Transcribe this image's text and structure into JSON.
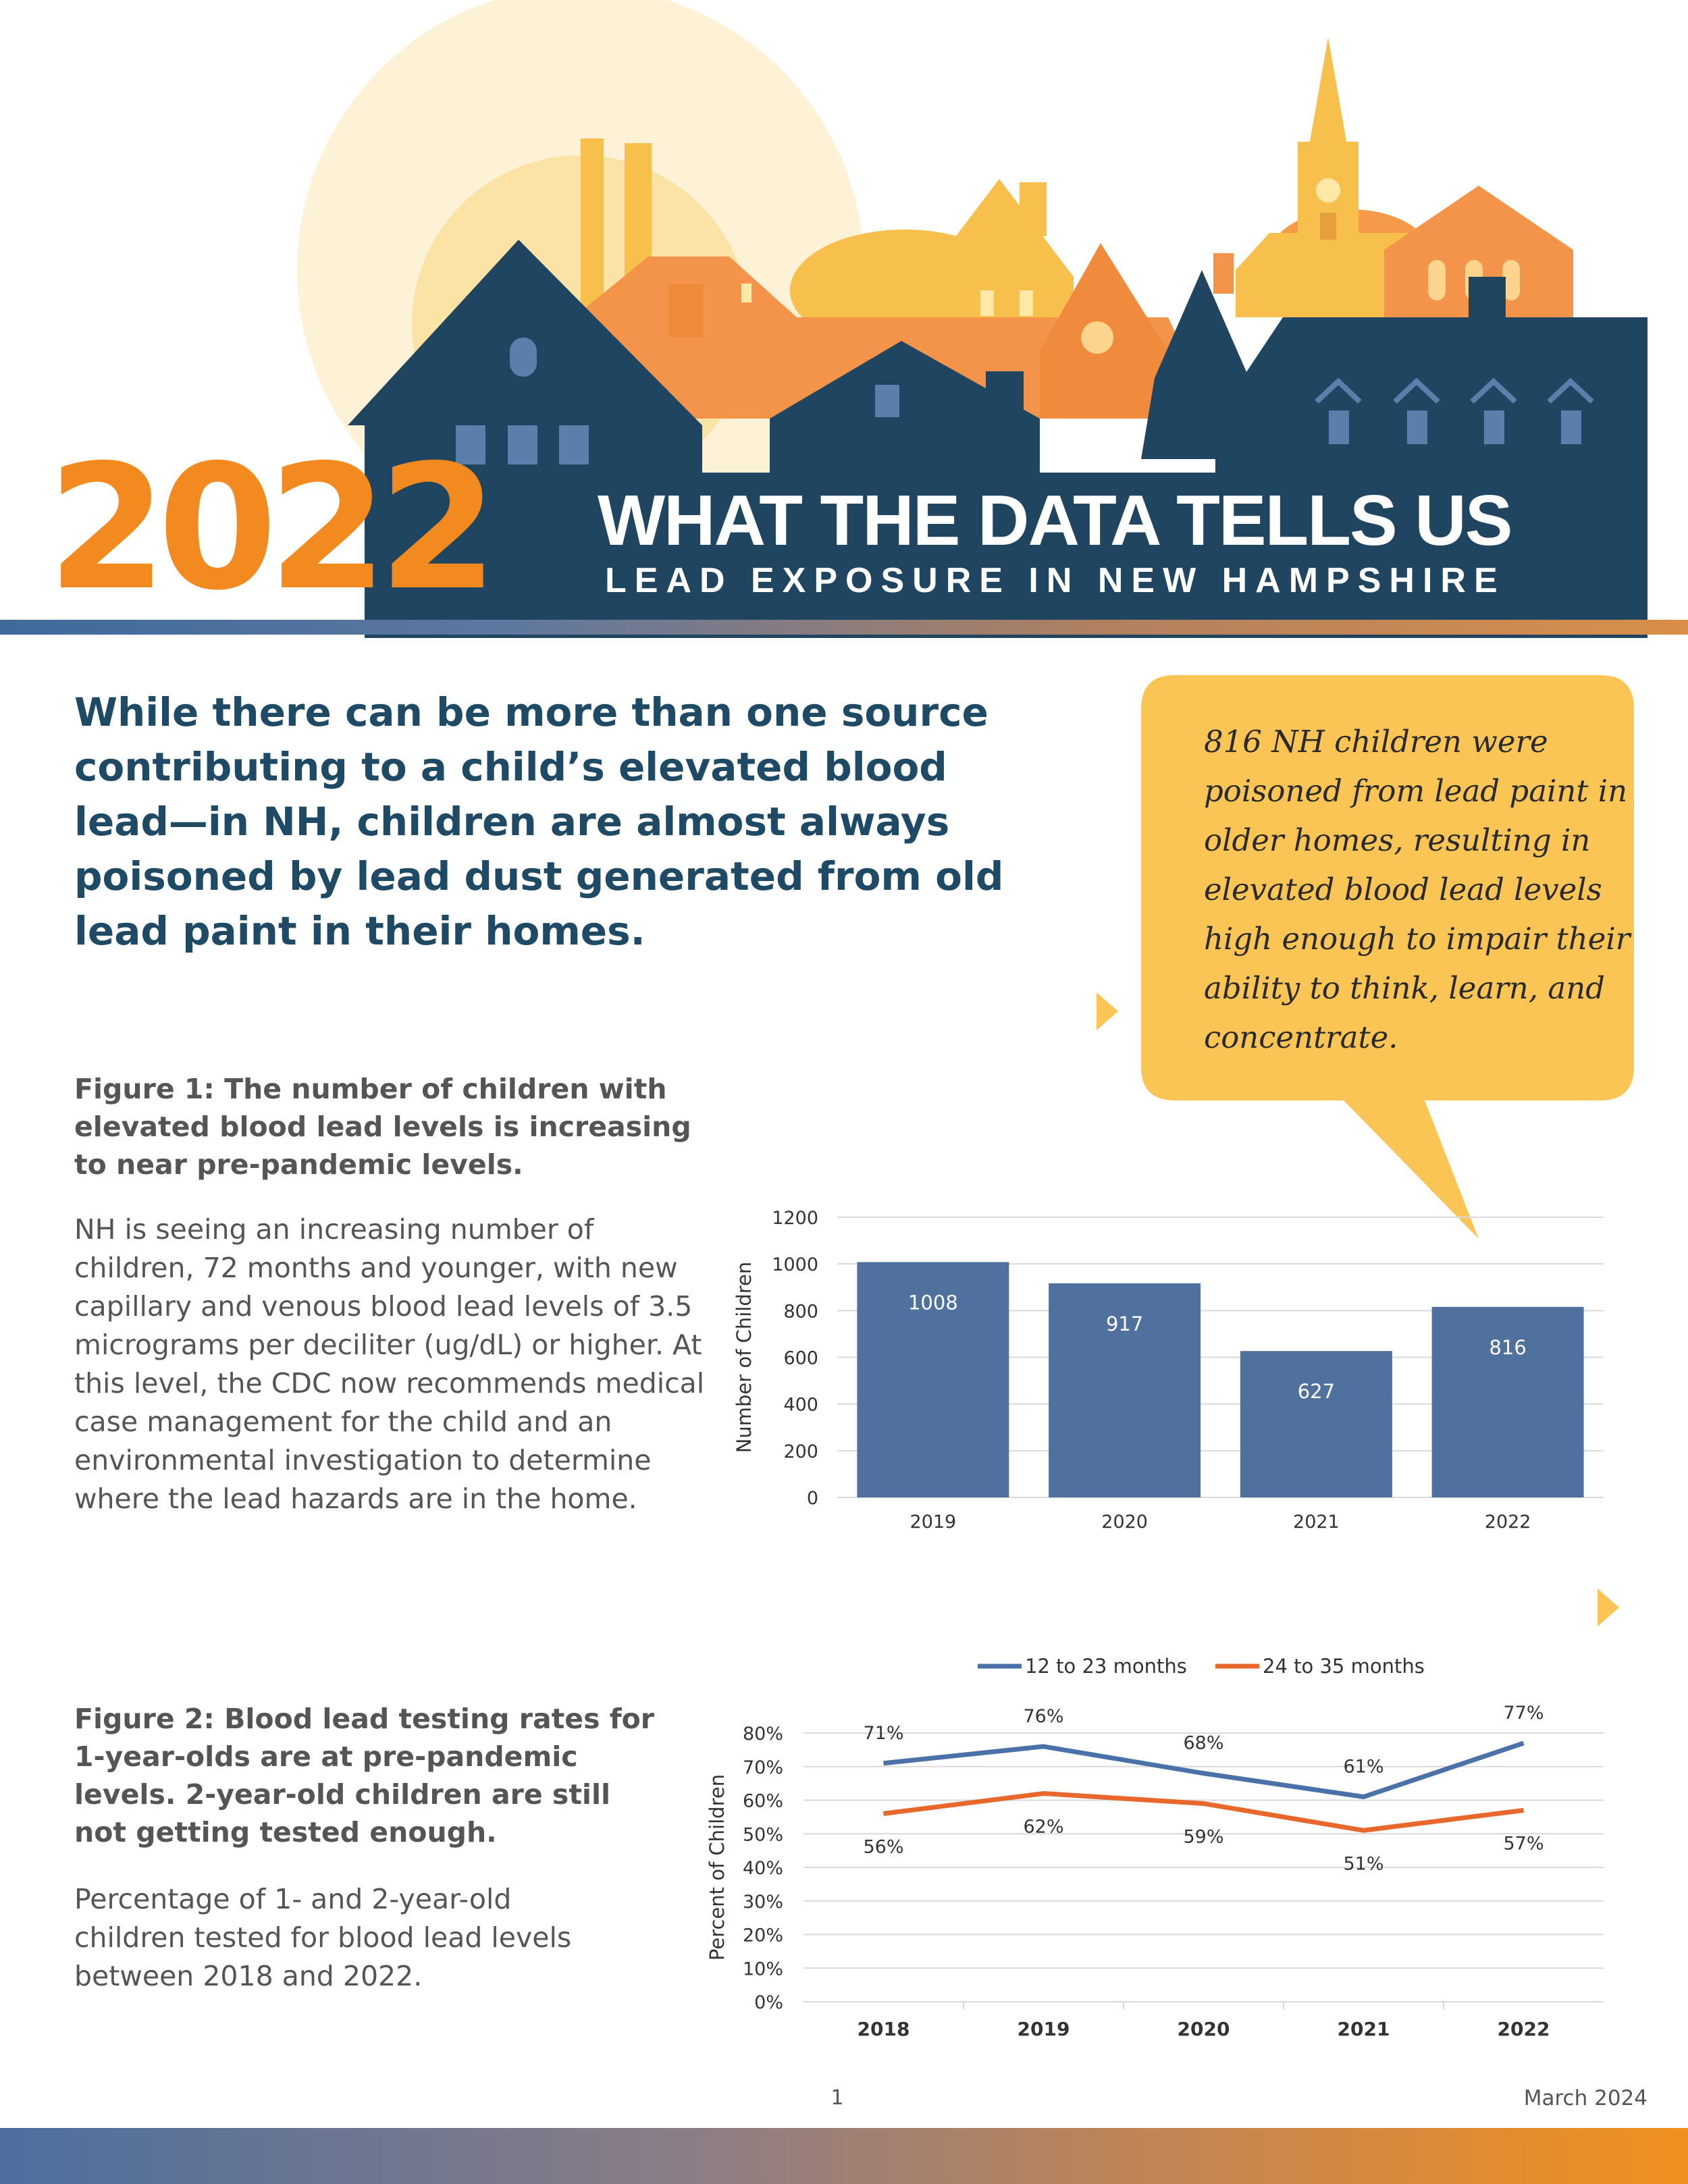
{
  "header": {
    "year": "2022",
    "title": "WHAT THE DATA TELLS US",
    "subtitle": "LEAD EXPOSURE IN NEW HAMPSHIRE"
  },
  "intro": {
    "text": "While there can be more than one source contributing to a child’s elevated blood lead—in NH, children are almost always poisoned by lead dust generated from old lead paint in their homes."
  },
  "callout": {
    "text": "816 NH children were poisoned from lead paint in older homes, resulting in elevated blood lead levels high enough to impair their ability to think, learn, and concentrate."
  },
  "figure1": {
    "title": "Figure 1: The number of children with elevated blood lead levels is increasing to near pre-pandemic levels.",
    "body": "NH is seeing an increasing number of children, 72 months and younger, with new capillary and venous blood lead levels of 3.5 micrograms per deciliter (ug/dL) or higher. At this level, the CDC now recommends medical case management for the child and an environmental investigation to determine where the lead hazards are in the home."
  },
  "figure2": {
    "title": "Figure 2: Blood lead testing rates for 1-year-olds are at pre-pandemic levels. 2-year-old children are still not getting tested enough.",
    "body": "Percentage of 1- and 2-year-old children tested for blood lead levels between 2018 and 2022."
  },
  "colors": {
    "navy": "#1f4560",
    "orange": "#f28a1f",
    "bar_blue": "#50709e",
    "line_blue": "#4a72a8",
    "line_orange": "#e8672a",
    "callout_yellow": "#fbc556"
  },
  "chart_data": [
    {
      "type": "bar",
      "categories": [
        "2019",
        "2020",
        "2021",
        "2022"
      ],
      "values": [
        1008,
        917,
        627,
        816
      ],
      "data_labels": [
        "1008",
        "917",
        "627",
        "816"
      ],
      "ylabel": "Number of Children",
      "xlabel": "",
      "ylim": [
        0,
        1200
      ],
      "yticks": [
        "0",
        "200",
        "400",
        "600",
        "800",
        "1000",
        "1200"
      ],
      "grid": true
    },
    {
      "type": "line",
      "categories": [
        "2018",
        "2019",
        "2020",
        "2021",
        "2022"
      ],
      "series": [
        {
          "name": "12 to 23 months",
          "values": [
            71,
            76,
            68,
            61,
            77
          ],
          "labels": [
            "71%",
            "76%",
            "68%",
            "61%",
            "77%"
          ]
        },
        {
          "name": "24 to 35 months",
          "values": [
            56,
            62,
            59,
            51,
            57
          ],
          "labels": [
            "56%",
            "62%",
            "59%",
            "51%",
            "57%"
          ]
        }
      ],
      "ylabel": "Percent of Children",
      "xlabel": "",
      "ylim": [
        0,
        80
      ],
      "yticks": [
        "0%",
        "10%",
        "20%",
        "30%",
        "40%",
        "50%",
        "60%",
        "70%",
        "80%"
      ],
      "legend": "top",
      "grid": true
    }
  ],
  "footer": {
    "page_number": "1",
    "date": "March 2024"
  }
}
